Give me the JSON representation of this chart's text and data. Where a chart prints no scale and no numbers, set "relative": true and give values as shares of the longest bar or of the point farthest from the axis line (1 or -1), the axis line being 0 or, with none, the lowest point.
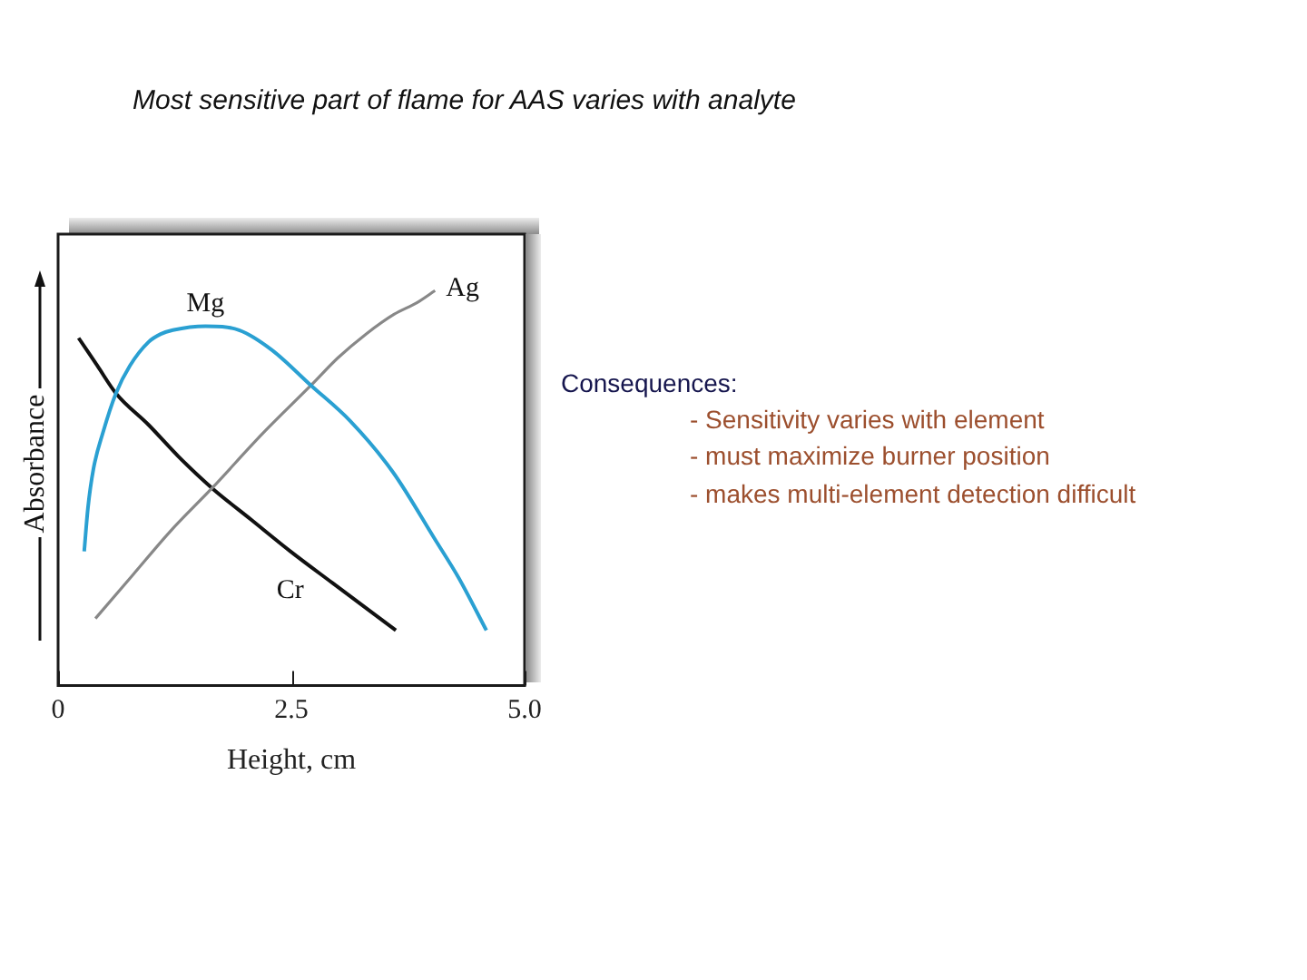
{
  "chart_data": {
    "type": "line",
    "title": "Most sensitive part of flame for AAS varies with analyte",
    "xlabel": "Height, cm",
    "ylabel": "Absorbance",
    "annotations": [
      "Consequences:",
      "- Sensitivity varies with element",
      "- must maximize burner position",
      "- makes multi-element detection difficult"
    ],
    "relative": true,
    "xlim": [
      0,
      5
    ],
    "xticks": [
      0,
      2.5,
      {
        "value": 5,
        "label": "5.0"
      }
    ],
    "grid": false,
    "legend": false,
    "marker": "none",
    "series": [
      {
        "name": "Mg",
        "color": "#2aa0d2",
        "x": [
          0.28,
          0.32,
          0.38,
          0.48,
          0.62,
          0.77,
          0.97,
          1.1,
          1.23,
          1.58,
          1.94,
          2.29,
          2.71,
          3.13,
          3.59,
          4.04,
          4.3,
          4.59
        ],
        "values": [
          0.34,
          0.45,
          0.55,
          0.64,
          0.74,
          0.81,
          0.87,
          0.89,
          0.9,
          0.91,
          0.9,
          0.85,
          0.76,
          0.67,
          0.54,
          0.37,
          0.27,
          0.14
        ]
      },
      {
        "name": "Ag",
        "color": "#888888",
        "x": [
          0.4,
          0.8,
          1.2,
          1.65,
          2.2,
          2.71,
          3.0,
          3.3,
          3.6,
          3.85,
          4.04
        ],
        "values": [
          0.17,
          0.28,
          0.39,
          0.5,
          0.64,
          0.76,
          0.83,
          0.89,
          0.94,
          0.97,
          1.0
        ]
      },
      {
        "name": "Cr",
        "color": "#111111",
        "x": [
          0.22,
          0.42,
          0.62,
          0.97,
          1.29,
          1.65,
          2.07,
          2.49,
          2.94,
          3.62
        ],
        "values": [
          0.88,
          0.81,
          0.74,
          0.66,
          0.58,
          0.5,
          0.42,
          0.34,
          0.26,
          0.14
        ]
      }
    ]
  }
}
